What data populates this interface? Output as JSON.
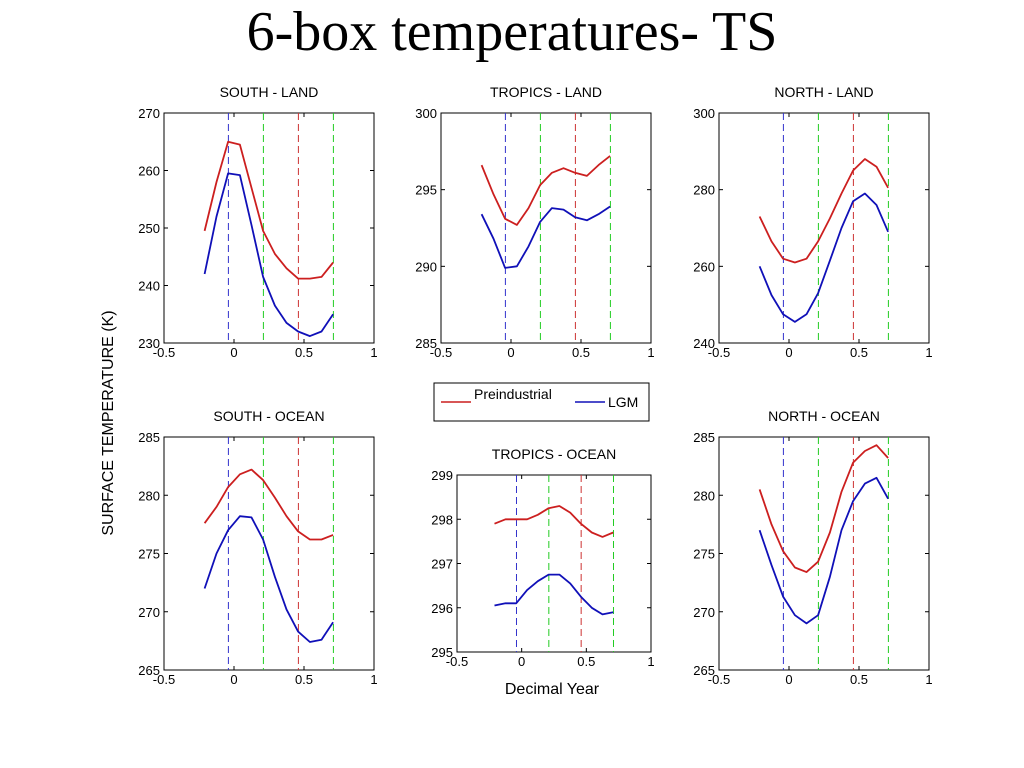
{
  "title": "6-box temperatures- TS",
  "colors": {
    "preindustrial": "#cc1f1f",
    "lgm": "#1010b8",
    "vline_blue": "#3333cc",
    "vline_red": "#cc3333",
    "vline_green": "#22cc22"
  },
  "figure": {
    "ylabel": "SURFACE TEMPERATURE (K)",
    "xlabel": "Decimal Year",
    "legend": {
      "placement": "center",
      "entries": [
        "Preindustrial",
        "LGM"
      ]
    }
  },
  "chart_data": [
    {
      "type": "line",
      "title": "SOUTH - LAND",
      "xlim": [
        -0.5,
        1
      ],
      "ylim": [
        230,
        270
      ],
      "xticks": [
        -0.5,
        0,
        0.5,
        1
      ],
      "xtick_labels": [
        "-0.5",
        "0",
        "0.5",
        "1"
      ],
      "yticks": [
        230,
        240,
        250,
        260,
        270
      ],
      "ytick_labels": [
        "230",
        "240",
        "250",
        "260",
        "270"
      ],
      "vlines": [
        {
          "x": -0.04,
          "color": "blue"
        },
        {
          "x": 0.21,
          "color": "green"
        },
        {
          "x": 0.46,
          "color": "red"
        },
        {
          "x": 0.71,
          "color": "green"
        }
      ],
      "x": [
        -0.21,
        -0.125,
        -0.042,
        0.042,
        0.125,
        0.208,
        0.292,
        0.375,
        0.458,
        0.542,
        0.625,
        0.708
      ],
      "series": [
        {
          "name": "Preindustrial",
          "values": [
            249.5,
            258,
            265,
            264.5,
            257,
            249.5,
            245.5,
            243,
            241.2,
            241.2,
            241.5,
            244
          ]
        },
        {
          "name": "LGM",
          "values": [
            242,
            252,
            259.5,
            259.2,
            250.5,
            241.5,
            236.5,
            233.5,
            232,
            231.2,
            232,
            235
          ]
        }
      ]
    },
    {
      "type": "line",
      "title": "TROPICS - LAND",
      "xlim": [
        -0.5,
        1
      ],
      "ylim": [
        285,
        300
      ],
      "xticks": [
        -0.5,
        0,
        0.5,
        1
      ],
      "xtick_labels": [
        "-0.5",
        "0",
        "0.5",
        "1"
      ],
      "yticks": [
        285,
        290,
        295,
        300
      ],
      "ytick_labels": [
        "285",
        "290",
        "295",
        "300"
      ],
      "vlines": [
        {
          "x": -0.04,
          "color": "blue"
        },
        {
          "x": 0.21,
          "color": "green"
        },
        {
          "x": 0.46,
          "color": "red"
        },
        {
          "x": 0.71,
          "color": "green"
        }
      ],
      "x": [
        -0.21,
        -0.125,
        -0.042,
        0.042,
        0.125,
        0.208,
        0.292,
        0.375,
        0.458,
        0.542,
        0.625,
        0.708
      ],
      "series": [
        {
          "name": "Preindustrial",
          "values": [
            296.6,
            294.7,
            293.1,
            292.7,
            293.8,
            295.3,
            296.1,
            296.4,
            296.1,
            295.9,
            296.6,
            297.2
          ]
        },
        {
          "name": "LGM",
          "values": [
            293.4,
            291.8,
            289.9,
            290,
            291.3,
            292.9,
            293.8,
            293.7,
            293.2,
            293,
            293.4,
            293.9
          ]
        }
      ]
    },
    {
      "type": "line",
      "title": "NORTH - LAND",
      "xlim": [
        -0.5,
        1
      ],
      "ylim": [
        240,
        300
      ],
      "xticks": [
        -0.5,
        0,
        0.5,
        1
      ],
      "xtick_labels": [
        "-0.5",
        "0",
        "0.5",
        "1"
      ],
      "yticks": [
        240,
        260,
        280,
        300
      ],
      "ytick_labels": [
        "240",
        "260",
        "280",
        "300"
      ],
      "vlines": [
        {
          "x": -0.04,
          "color": "blue"
        },
        {
          "x": 0.21,
          "color": "green"
        },
        {
          "x": 0.46,
          "color": "red"
        },
        {
          "x": 0.71,
          "color": "green"
        }
      ],
      "x": [
        -0.21,
        -0.125,
        -0.042,
        0.042,
        0.125,
        0.208,
        0.292,
        0.375,
        0.458,
        0.542,
        0.625,
        0.708
      ],
      "series": [
        {
          "name": "Preindustrial",
          "values": [
            273,
            266.5,
            262,
            261,
            262,
            266.5,
            272.5,
            279,
            285,
            288,
            286,
            280.5
          ]
        },
        {
          "name": "LGM",
          "values": [
            260,
            252.5,
            247.5,
            245.5,
            247.5,
            253,
            261.5,
            270,
            277,
            279,
            276,
            269
          ]
        }
      ]
    },
    {
      "type": "line",
      "title": "SOUTH - OCEAN",
      "xlim": [
        -0.5,
        1
      ],
      "ylim": [
        265,
        285
      ],
      "xticks": [
        -0.5,
        0,
        0.5,
        1
      ],
      "xtick_labels": [
        "-0.5",
        "0",
        "0.5",
        "1"
      ],
      "yticks": [
        265,
        270,
        275,
        280,
        285
      ],
      "ytick_labels": [
        "265",
        "270",
        "275",
        "280",
        "285"
      ],
      "vlines": [
        {
          "x": -0.04,
          "color": "blue"
        },
        {
          "x": 0.21,
          "color": "green"
        },
        {
          "x": 0.46,
          "color": "red"
        },
        {
          "x": 0.71,
          "color": "green"
        }
      ],
      "x": [
        -0.21,
        -0.125,
        -0.042,
        0.042,
        0.125,
        0.208,
        0.292,
        0.375,
        0.458,
        0.542,
        0.625,
        0.708
      ],
      "series": [
        {
          "name": "Preindustrial",
          "values": [
            277.6,
            279,
            280.7,
            281.8,
            282.2,
            281.3,
            279.8,
            278.2,
            276.9,
            276.2,
            276.2,
            276.6
          ]
        },
        {
          "name": "LGM",
          "values": [
            272,
            275,
            277,
            278.2,
            278.1,
            276.2,
            273,
            270.2,
            268.3,
            267.4,
            267.6,
            269.1
          ]
        }
      ]
    },
    {
      "type": "line",
      "title": "TROPICS - OCEAN",
      "xlim": [
        -0.5,
        1
      ],
      "ylim": [
        295,
        299
      ],
      "xticks": [
        -0.5,
        0,
        0.5,
        1
      ],
      "xtick_labels": [
        "-0.5",
        "0",
        "0.5",
        "1"
      ],
      "yticks": [
        295,
        296,
        297,
        298,
        299
      ],
      "ytick_labels": [
        "295",
        "296",
        "297",
        "298",
        "299"
      ],
      "vlines": [
        {
          "x": -0.04,
          "color": "blue"
        },
        {
          "x": 0.21,
          "color": "green"
        },
        {
          "x": 0.46,
          "color": "red"
        },
        {
          "x": 0.71,
          "color": "green"
        }
      ],
      "x": [
        -0.21,
        -0.125,
        -0.042,
        0.042,
        0.125,
        0.208,
        0.292,
        0.375,
        0.458,
        0.542,
        0.625,
        0.708
      ],
      "series": [
        {
          "name": "Preindustrial",
          "values": [
            297.9,
            298,
            298,
            298,
            298.1,
            298.25,
            298.3,
            298.15,
            297.9,
            297.7,
            297.6,
            297.7
          ]
        },
        {
          "name": "LGM",
          "values": [
            296.05,
            296.1,
            296.1,
            296.4,
            296.6,
            296.75,
            296.75,
            296.55,
            296.25,
            296,
            295.85,
            295.9
          ]
        }
      ]
    },
    {
      "type": "line",
      "title": "NORTH - OCEAN",
      "xlim": [
        -0.5,
        1
      ],
      "ylim": [
        265,
        285
      ],
      "xticks": [
        -0.5,
        0,
        0.5,
        1
      ],
      "xtick_labels": [
        "-0.5",
        "0",
        "0.5",
        "1"
      ],
      "yticks": [
        265,
        270,
        275,
        280,
        285
      ],
      "ytick_labels": [
        "265",
        "270",
        "275",
        "280",
        "285"
      ],
      "vlines": [
        {
          "x": -0.04,
          "color": "blue"
        },
        {
          "x": 0.21,
          "color": "green"
        },
        {
          "x": 0.46,
          "color": "red"
        },
        {
          "x": 0.71,
          "color": "green"
        }
      ],
      "x": [
        -0.21,
        -0.125,
        -0.042,
        0.042,
        0.125,
        0.208,
        0.292,
        0.375,
        0.458,
        0.542,
        0.625,
        0.708
      ],
      "series": [
        {
          "name": "Preindustrial",
          "values": [
            280.5,
            277.5,
            275.2,
            273.8,
            273.4,
            274.3,
            276.8,
            280.3,
            282.8,
            283.8,
            284.3,
            283.2
          ]
        },
        {
          "name": "LGM",
          "values": [
            277,
            274,
            271.3,
            269.7,
            269,
            269.7,
            273,
            277,
            279.5,
            281,
            281.5,
            279.7
          ]
        }
      ]
    }
  ]
}
